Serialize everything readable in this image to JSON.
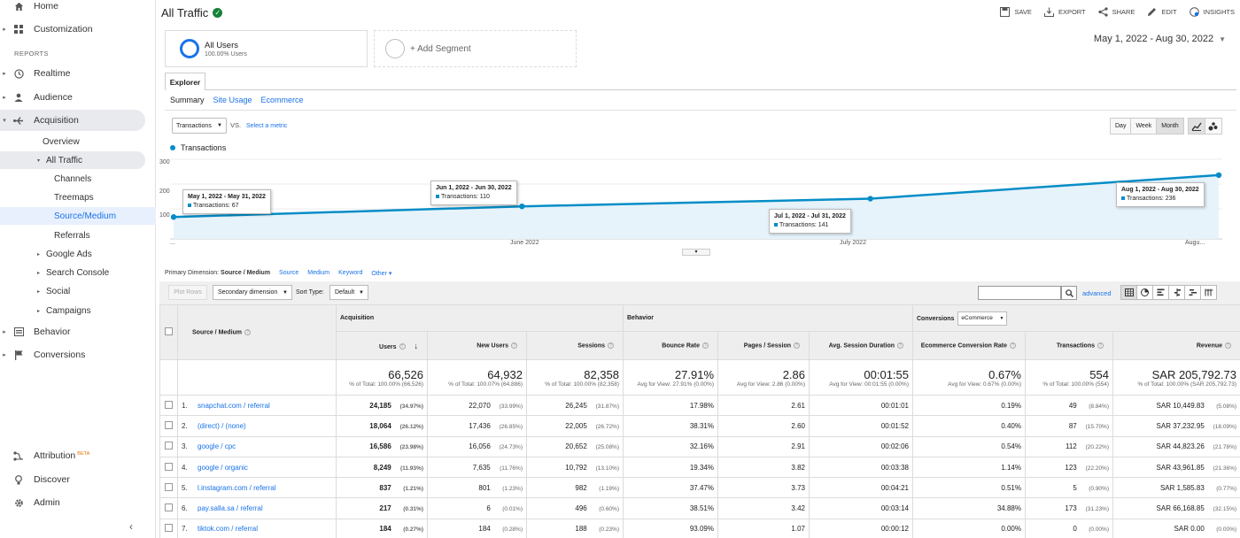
{
  "sidebar": {
    "top": [
      {
        "label": "Home",
        "icon": "home-icon"
      },
      {
        "label": "Customization",
        "icon": "grid-icon"
      }
    ],
    "reports_header": "REPORTS",
    "reports": [
      {
        "label": "Realtime",
        "icon": "clock-icon"
      },
      {
        "label": "Audience",
        "icon": "person-icon"
      },
      {
        "label": "Acquisition",
        "icon": "acquisition-icon"
      }
    ],
    "acquisition_sub": {
      "overview": "Overview",
      "all_traffic": "All Traffic",
      "channels": "Channels",
      "treemaps": "Treemaps",
      "source_medium": "Source/Medium",
      "referrals": "Referrals",
      "google_ads": "Google Ads",
      "search_console": "Search Console",
      "social": "Social",
      "campaigns": "Campaigns"
    },
    "behavior": "Behavior",
    "conversions": "Conversions",
    "attribution": "Attribution",
    "attribution_badge": "BETA",
    "discover": "Discover",
    "admin": "Admin",
    "collapse": "‹"
  },
  "header": {
    "title": "All Traffic",
    "actions": {
      "save": "SAVE",
      "export": "EXPORT",
      "share": "SHARE",
      "edit": "EDIT",
      "insights": "INSIGHTS"
    },
    "date_range": "May 1, 2022 - Aug 30, 2022"
  },
  "segments": {
    "seg1_title": "All Users",
    "seg1_sub": "100.00% Users",
    "add": "+ Add Segment"
  },
  "tabs": {
    "explorer": "Explorer",
    "summary": "Summary",
    "site_usage": "Site Usage",
    "ecommerce": "Ecommerce"
  },
  "chart_controls": {
    "metric": "Transactions",
    "vs": "VS.",
    "select_metric": "Select a metric",
    "day": "Day",
    "week": "Week",
    "month": "Month"
  },
  "chart_data": {
    "type": "area",
    "series": [
      {
        "name": "Transactions",
        "values": [
          67,
          110,
          141,
          236
        ]
      }
    ],
    "x": [
      "May 2022",
      "June 2022",
      "July 2022",
      "August 2022"
    ],
    "ylim": [
      0,
      300
    ],
    "yticks": [
      "300",
      "200",
      "100"
    ],
    "xticks": [
      "...",
      "June 2022",
      "July 2022",
      "Augu..."
    ],
    "color": "#058dc7",
    "fill": "#e6f3fa",
    "grid": true,
    "tooltips": [
      {
        "range": "May 1, 2022 - May 31, 2022",
        "value": "Transactions: 67"
      },
      {
        "range": "Jun 1, 2022 - Jun 30, 2022",
        "value": "Transactions: 110"
      },
      {
        "range": "Jul 1, 2022 - Jul 31, 2022",
        "value": "Transactions: 141"
      },
      {
        "range": "Aug 1, 2022 - Aug 30, 2022",
        "value": "Transactions: 236"
      }
    ]
  },
  "primary_dimension": {
    "label": "Primary Dimension:",
    "current": "Source / Medium",
    "options": [
      "Source",
      "Medium",
      "Keyword",
      "Other ▾"
    ]
  },
  "table_controls": {
    "plot_rows": "Plot Rows",
    "secondary_dimension": "Secondary dimension",
    "sort_type_label": "Sort Type:",
    "sort_type": "Default",
    "advanced": "advanced"
  },
  "table": {
    "groups": {
      "acquisition": "Acquisition",
      "behavior": "Behavior",
      "conversions": "Conversions",
      "ecommerce_select": "eCommerce"
    },
    "headers": {
      "source_medium": "Source / Medium",
      "users": "Users",
      "new_users": "New Users",
      "sessions": "Sessions",
      "bounce_rate": "Bounce Rate",
      "pages_session": "Pages / Session",
      "avg_session": "Avg. Session Duration",
      "ecom_rate": "Ecommerce Conversion Rate",
      "transactions": "Transactions",
      "revenue": "Revenue"
    },
    "sort_arrow": "↓",
    "totals": {
      "users": "66,526",
      "users_sub": "% of Total: 100.00% (66,526)",
      "new_users": "64,932",
      "new_users_sub": "% of Total: 100.07% (64,886)",
      "sessions": "82,358",
      "sessions_sub": "% of Total: 100.00% (82,358)",
      "bounce_rate": "27.91%",
      "bounce_rate_sub": "Avg for View: 27.91% (0.00%)",
      "pages_session": "2.86",
      "pages_session_sub": "Avg for View: 2.86 (0.00%)",
      "avg_session": "00:01:55",
      "avg_session_sub": "Avg for View: 00:01:55 (0.00%)",
      "ecom_rate": "0.67%",
      "ecom_rate_sub": "Avg for View: 0.67% (0.00%)",
      "transactions": "554",
      "transactions_sub": "% of Total: 100.00% (554)",
      "revenue": "SAR 205,792.73",
      "revenue_sub": "% of Total: 100.00% (SAR 205,792.73)"
    },
    "rows": [
      {
        "idx": "1.",
        "source": "snapchat.com / referral",
        "users": "24,185",
        "users_pct": "(34.97%)",
        "new_users": "22,070",
        "new_users_pct": "(33.99%)",
        "sessions": "26,245",
        "sessions_pct": "(31.87%)",
        "bounce": "17.98%",
        "pages": "2.61",
        "duration": "00:01:01",
        "ecom": "0.19%",
        "trans": "49",
        "trans_pct": "(8.84%)",
        "rev": "SAR 10,449.83",
        "rev_pct": "(5.08%)"
      },
      {
        "idx": "2.",
        "source": "(direct) / (none)",
        "users": "18,064",
        "users_pct": "(26.12%)",
        "new_users": "17,436",
        "new_users_pct": "(26.85%)",
        "sessions": "22,005",
        "sessions_pct": "(26.72%)",
        "bounce": "38.31%",
        "pages": "2.60",
        "duration": "00:01:52",
        "ecom": "0.40%",
        "trans": "87",
        "trans_pct": "(15.70%)",
        "rev": "SAR 37,232.95",
        "rev_pct": "(18.09%)"
      },
      {
        "idx": "3.",
        "source": "google / cpc",
        "users": "16,586",
        "users_pct": "(23.98%)",
        "new_users": "16,056",
        "new_users_pct": "(24.73%)",
        "sessions": "20,652",
        "sessions_pct": "(25.08%)",
        "bounce": "32.16%",
        "pages": "2.91",
        "duration": "00:02:06",
        "ecom": "0.54%",
        "trans": "112",
        "trans_pct": "(20.22%)",
        "rev": "SAR 44,823.26",
        "rev_pct": "(21.78%)"
      },
      {
        "idx": "4.",
        "source": "google / organic",
        "users": "8,249",
        "users_pct": "(11.93%)",
        "new_users": "7,635",
        "new_users_pct": "(11.76%)",
        "sessions": "10,792",
        "sessions_pct": "(13.10%)",
        "bounce": "19.34%",
        "pages": "3.82",
        "duration": "00:03:38",
        "ecom": "1.14%",
        "trans": "123",
        "trans_pct": "(22.20%)",
        "rev": "SAR 43,961.85",
        "rev_pct": "(21.36%)"
      },
      {
        "idx": "5.",
        "source": "l.instagram.com / referral",
        "users": "837",
        "users_pct": "(1.21%)",
        "new_users": "801",
        "new_users_pct": "(1.23%)",
        "sessions": "982",
        "sessions_pct": "(1.19%)",
        "bounce": "37.47%",
        "pages": "3.73",
        "duration": "00:04:21",
        "ecom": "0.51%",
        "trans": "5",
        "trans_pct": "(0.90%)",
        "rev": "SAR 1,585.83",
        "rev_pct": "(0.77%)"
      },
      {
        "idx": "6.",
        "source": "pay.salla.sa / referral",
        "users": "217",
        "users_pct": "(0.31%)",
        "new_users": "6",
        "new_users_pct": "(0.01%)",
        "sessions": "496",
        "sessions_pct": "(0.60%)",
        "bounce": "38.51%",
        "pages": "3.42",
        "duration": "00:03:14",
        "ecom": "34.88%",
        "trans": "173",
        "trans_pct": "(31.23%)",
        "rev": "SAR 66,168.85",
        "rev_pct": "(32.15%)"
      },
      {
        "idx": "7.",
        "source": "tiktok.com / referral",
        "users": "184",
        "users_pct": "(0.27%)",
        "new_users": "184",
        "new_users_pct": "(0.28%)",
        "sessions": "188",
        "sessions_pct": "(0.23%)",
        "bounce": "93.09%",
        "pages": "1.07",
        "duration": "00:00:12",
        "ecom": "0.00%",
        "trans": "0",
        "trans_pct": "(0.00%)",
        "rev": "SAR 0.00",
        "rev_pct": "(0.00%)"
      }
    ]
  }
}
